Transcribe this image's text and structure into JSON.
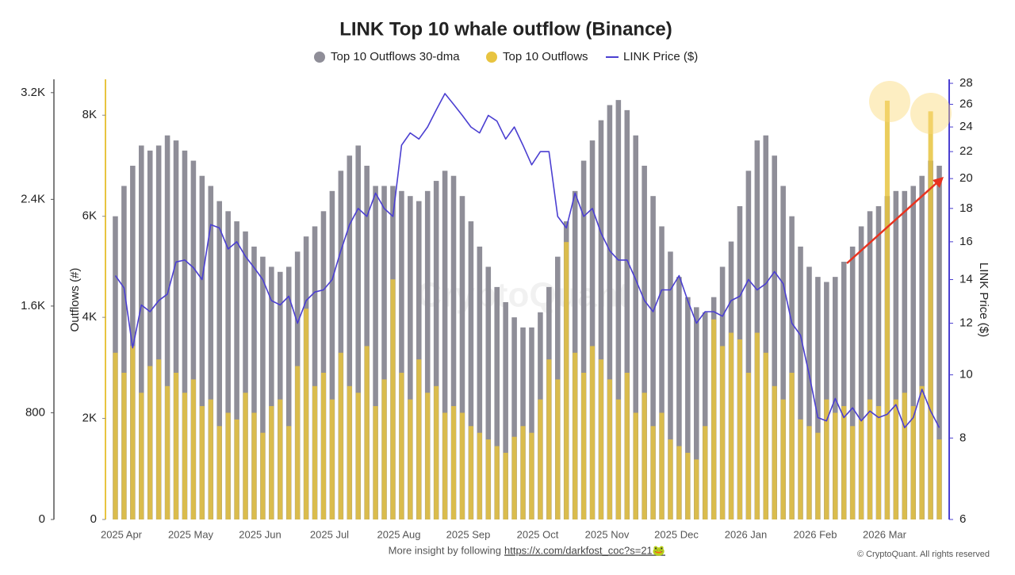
{
  "chart_data": {
    "type": "combo",
    "title": "LINK Top 10 whale outflow (Binance)",
    "y_label": "Outflows (#)",
    "y3_label": "LINK Price ($)",
    "watermark": "CryptoQuant",
    "footer": "More insight by following",
    "footer_link": "https://x.com/darkfost_coc?s=21🐸",
    "copyright": "© CryptoQuant. All rights reserved",
    "categories": [
      "2025 Apr",
      null,
      null,
      null,
      null,
      null,
      null,
      null,
      "2025 May",
      null,
      null,
      null,
      null,
      null,
      null,
      null,
      "2025 Jun",
      null,
      null,
      null,
      null,
      null,
      null,
      null,
      "2025 Jul",
      null,
      null,
      null,
      null,
      null,
      null,
      null,
      "2025 Aug",
      null,
      null,
      null,
      null,
      null,
      null,
      null,
      "2025 Sep",
      null,
      null,
      null,
      null,
      null,
      null,
      null,
      "2025 Oct",
      null,
      null,
      null,
      null,
      null,
      null,
      null,
      "2025 Nov",
      null,
      null,
      null,
      null,
      null,
      null,
      null,
      "2025 Dec",
      null,
      null,
      null,
      null,
      null,
      null,
      null,
      "2026 Jan",
      null,
      null,
      null,
      null,
      null,
      null,
      null,
      "2026 Feb",
      null,
      null,
      null,
      null,
      null,
      null,
      null,
      "2026 Mar",
      null,
      null,
      null,
      null,
      null,
      null,
      null
    ],
    "ylim": [
      0,
      8710
    ],
    "yticks": [
      0,
      {
        "value": 2000,
        "label": "2K"
      },
      {
        "value": 4000,
        "label": "4K"
      },
      {
        "value": 6000,
        "label": "6K"
      },
      {
        "value": 8000,
        "label": "8K"
      }
    ],
    "y2lim": [
      0,
      3300
    ],
    "y2ticks": [
      0,
      800,
      {
        "value": 1600,
        "label": "1.6K"
      },
      {
        "value": 2400,
        "label": "2.4K"
      },
      {
        "value": 3200,
        "label": "3.2K"
      }
    ],
    "y3lim": [
      6,
      28.4
    ],
    "y3scale": "log",
    "y3ticks": [
      6,
      8,
      10,
      12,
      14,
      16,
      18,
      20,
      22,
      24,
      26,
      28
    ],
    "series": [
      {
        "name": "Top 10 Outflows 30-dma",
        "type": "bar",
        "axis": "y",
        "color": "#8f8e98",
        "values": [
          6000,
          6600,
          7000,
          7400,
          7300,
          7400,
          7600,
          7500,
          7300,
          7100,
          6800,
          6600,
          6300,
          6100,
          5900,
          5700,
          5400,
          5200,
          5000,
          4900,
          5000,
          5300,
          5600,
          5800,
          6100,
          6500,
          6900,
          7200,
          7400,
          7000,
          6600,
          6600,
          6600,
          6500,
          6400,
          6300,
          6500,
          6700,
          6900,
          6800,
          6400,
          5900,
          5400,
          5000,
          4600,
          4300,
          4000,
          3800,
          3800,
          4100,
          4600,
          5200,
          5900,
          6500,
          7100,
          7500,
          7900,
          8200,
          8300,
          8100,
          7600,
          7000,
          6400,
          5800,
          5300,
          4800,
          4400,
          4200,
          4100,
          4400,
          5000,
          5500,
          6200,
          6900,
          7500,
          7600,
          7200,
          6600,
          6000,
          5400,
          5000,
          4800,
          4700,
          4800,
          5100,
          5400,
          5800,
          6100,
          6200,
          6400,
          6500,
          6500,
          6600,
          6800,
          7100,
          7000
        ]
      },
      {
        "name": "Top 10 Outflows",
        "type": "bar",
        "axis": "y2",
        "color": "#e8c440",
        "values": [
          1250,
          1100,
          1300,
          950,
          1150,
          1200,
          1000,
          1100,
          950,
          1050,
          850,
          900,
          700,
          800,
          750,
          950,
          800,
          650,
          850,
          900,
          700,
          1150,
          1580,
          1000,
          1100,
          900,
          1250,
          1000,
          950,
          1300,
          850,
          1050,
          1800,
          1100,
          900,
          1200,
          950,
          1000,
          800,
          850,
          800,
          700,
          650,
          600,
          550,
          500,
          620,
          700,
          650,
          900,
          1200,
          1050,
          2080,
          1250,
          1100,
          1300,
          1200,
          1050,
          900,
          1100,
          800,
          950,
          700,
          800,
          600,
          550,
          500,
          450,
          700,
          1500,
          1300,
          1400,
          1350,
          1100,
          1400,
          1250,
          1000,
          900,
          1100,
          750,
          700,
          650,
          900,
          800,
          850,
          700,
          750,
          900,
          850,
          3140,
          900,
          950,
          850,
          1000,
          3060,
          600
        ]
      },
      {
        "name": "LINK Price ($)",
        "type": "line",
        "axis": "y3",
        "color": "#4b3fd1",
        "values": [
          14.2,
          13.6,
          11.0,
          12.8,
          12.5,
          13.0,
          13.3,
          14.9,
          15.0,
          14.6,
          14.0,
          17.0,
          16.8,
          15.6,
          16.0,
          15.2,
          14.6,
          14.0,
          13.0,
          12.8,
          13.2,
          12.0,
          13.0,
          13.4,
          13.5,
          14.0,
          15.5,
          17.0,
          18.0,
          17.5,
          19.0,
          18.0,
          17.5,
          22.5,
          23.5,
          23.0,
          24.0,
          25.5,
          27.0,
          26.0,
          25.0,
          24.0,
          23.5,
          25.0,
          24.5,
          23.0,
          24.0,
          22.5,
          21.0,
          22.0,
          22.0,
          17.5,
          16.8,
          19.0,
          17.5,
          18.0,
          16.5,
          15.5,
          15.0,
          15.0,
          14.0,
          13.0,
          12.5,
          13.5,
          13.5,
          14.2,
          13.0,
          12.0,
          12.5,
          12.5,
          12.3,
          13.0,
          13.2,
          14.0,
          13.5,
          13.8,
          14.4,
          13.8,
          12.0,
          11.5,
          10.0,
          8.6,
          8.5,
          9.2,
          8.6,
          8.9,
          8.5,
          8.8,
          8.6,
          8.7,
          9.0,
          8.3,
          8.6,
          9.5,
          8.8,
          8.3
        ]
      }
    ]
  }
}
